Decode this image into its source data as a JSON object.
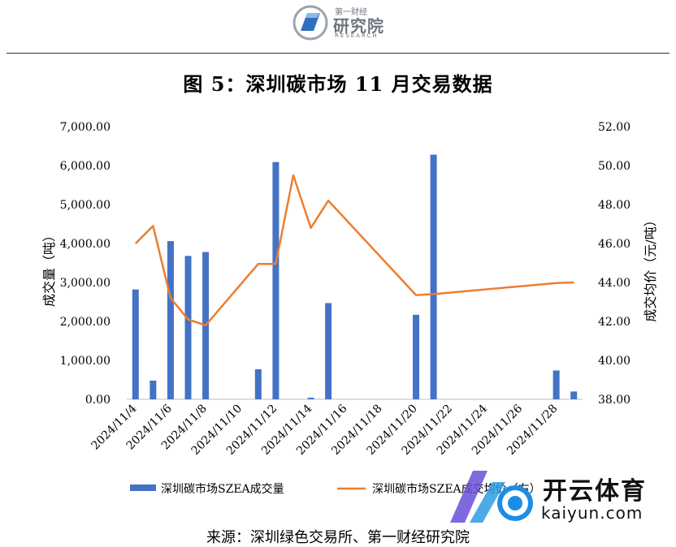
{
  "header": {
    "logo_small": "第一财经",
    "logo_main": "研究院",
    "logo_en": "RESEARCH"
  },
  "title": "图 5：深圳碳市场 11 月交易数据",
  "source": "来源：深圳绿色交易所、第一财经研究院",
  "watermark": {
    "cn": "开云体育",
    "en": "kaiyun.com"
  },
  "colors": {
    "bar": "#4472c4",
    "line": "#ed7d31",
    "axis": "#595959"
  },
  "chart_data": {
    "type": "bar",
    "title": "图 5：深圳碳市场 11 月交易数据",
    "x": [
      "2024/11/4",
      "2024/11/5",
      "2024/11/6",
      "2024/11/7",
      "2024/11/8",
      "2024/11/9",
      "2024/11/10",
      "2024/11/11",
      "2024/11/12",
      "2024/11/13",
      "2024/11/14",
      "2024/11/15",
      "2024/11/16",
      "2024/11/17",
      "2024/11/18",
      "2024/11/19",
      "2024/11/20",
      "2024/11/21",
      "2024/11/22",
      "2024/11/23",
      "2024/11/24",
      "2024/11/25",
      "2024/11/26",
      "2024/11/27",
      "2024/11/28",
      "2024/11/29"
    ],
    "x_tick_labels": [
      "2024/11/4",
      "2024/11/6",
      "2024/11/8",
      "2024/11/10",
      "2024/11/12",
      "2024/11/14",
      "2024/11/16",
      "2024/11/18",
      "2024/11/20",
      "2024/11/22",
      "2024/11/24",
      "2024/11/26",
      "2024/11/28"
    ],
    "ylabel": "成交量（吨）",
    "y2label": "成交均价（元/吨）",
    "ylim": [
      0,
      7000
    ],
    "y2lim": [
      38,
      52
    ],
    "y_ticks": [
      "0.00",
      "1,000.00",
      "2,000.00",
      "3,000.00",
      "4,000.00",
      "5,000.00",
      "6,000.00",
      "7,000.00"
    ],
    "y2_ticks": [
      "38.00",
      "40.00",
      "42.00",
      "44.00",
      "46.00",
      "48.00",
      "50.00",
      "52.00"
    ],
    "series": [
      {
        "name": "深圳碳市场SZEA成交量",
        "kind": "bar",
        "axis": "left",
        "values": [
          2820,
          480,
          4060,
          3680,
          3780,
          null,
          null,
          770,
          6090,
          null,
          40,
          2470,
          null,
          null,
          null,
          null,
          2170,
          6280,
          null,
          null,
          null,
          null,
          null,
          null,
          740,
          200
        ]
      },
      {
        "name": "深圳碳市场SZEA成交均价（右）",
        "kind": "line",
        "axis": "right",
        "values": [
          46.0,
          46.9,
          43.2,
          42.1,
          41.8,
          null,
          null,
          44.95,
          44.95,
          49.5,
          46.8,
          48.2,
          null,
          null,
          null,
          null,
          43.35,
          43.4,
          null,
          null,
          null,
          null,
          null,
          null,
          43.97,
          44.0
        ]
      }
    ],
    "legend_position": "bottom",
    "grid": false
  }
}
